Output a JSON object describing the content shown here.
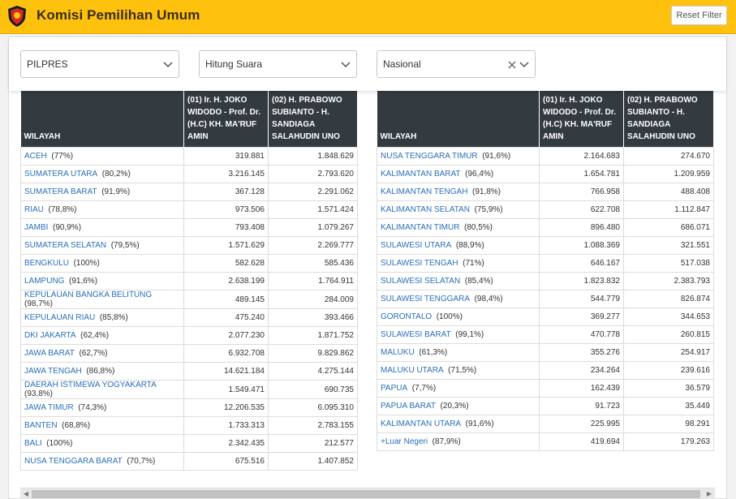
{
  "header": {
    "title": "Komisi Pemilihan Umum",
    "reset_label": "Reset Filter"
  },
  "filters": {
    "election": "PILPRES",
    "mode": "Hitung Suara",
    "area": "Nasional"
  },
  "table": {
    "col_region": "WILAYAH",
    "col_01": "(01) Ir. H. JOKO WIDODO - Prof. Dr. (H.C) KH. MA'RUF AMIN",
    "col_02": "(02) H. PRABOWO SUBIANTO - H. SANDIAGA SALAHUDIN UNO",
    "left_rows": [
      {
        "name": "ACEH",
        "pct": "(77%)",
        "v1": "319.881",
        "v2": "1.848.629"
      },
      {
        "name": "SUMATERA UTARA",
        "pct": "(80,2%)",
        "v1": "3.216.145",
        "v2": "2.793.620"
      },
      {
        "name": "SUMATERA BARAT",
        "pct": "(91,9%)",
        "v1": "367.128",
        "v2": "2.291.062"
      },
      {
        "name": "RIAU",
        "pct": "(78,8%)",
        "v1": "973.506",
        "v2": "1.571.424"
      },
      {
        "name": "JAMBI",
        "pct": "(90,9%)",
        "v1": "793.408",
        "v2": "1.079.267"
      },
      {
        "name": "SUMATERA SELATAN",
        "pct": "(79,5%)",
        "v1": "1.571.629",
        "v2": "2.269.777"
      },
      {
        "name": "BENGKULU",
        "pct": "(100%)",
        "v1": "582.628",
        "v2": "585.436"
      },
      {
        "name": "LAMPUNG",
        "pct": "(91,6%)",
        "v1": "2.638.199",
        "v2": "1.764.911"
      },
      {
        "name": "KEPULAUAN BANGKA BELITUNG",
        "pct": "(98,7%)",
        "v1": "489.145",
        "v2": "284.009"
      },
      {
        "name": "KEPULAUAN RIAU",
        "pct": "(85,8%)",
        "v1": "475.240",
        "v2": "393.466"
      },
      {
        "name": "DKI JAKARTA",
        "pct": "(62,4%)",
        "v1": "2.077.230",
        "v2": "1.871.752"
      },
      {
        "name": "JAWA BARAT",
        "pct": "(62,7%)",
        "v1": "6.932.708",
        "v2": "9.829.862"
      },
      {
        "name": "JAWA TENGAH",
        "pct": "(86,8%)",
        "v1": "14.621.184",
        "v2": "4.275.144"
      },
      {
        "name": "DAERAH ISTIMEWA YOGYAKARTA",
        "pct": "(93,8%)",
        "v1": "1.549.471",
        "v2": "690.735"
      },
      {
        "name": "JAWA TIMUR",
        "pct": "(74,3%)",
        "v1": "12.206.535",
        "v2": "6.095.310"
      },
      {
        "name": "BANTEN",
        "pct": "(68,8%)",
        "v1": "1.733.313",
        "v2": "2.783.155"
      },
      {
        "name": "BALI",
        "pct": "(100%)",
        "v1": "2.342.435",
        "v2": "212.577"
      },
      {
        "name": "NUSA TENGGARA BARAT",
        "pct": "(70,7%)",
        "v1": "675.516",
        "v2": "1.407.852"
      }
    ],
    "right_rows": [
      {
        "name": "NUSA TENGGARA TIMUR",
        "pct": "(91,6%)",
        "v1": "2.164.683",
        "v2": "274.670"
      },
      {
        "name": "KALIMANTAN BARAT",
        "pct": "(96,4%)",
        "v1": "1.654.781",
        "v2": "1.209.959"
      },
      {
        "name": "KALIMANTAN TENGAH",
        "pct": "(91,8%)",
        "v1": "766.958",
        "v2": "488.408"
      },
      {
        "name": "KALIMANTAN SELATAN",
        "pct": "(75,9%)",
        "v1": "622.708",
        "v2": "1.112.847"
      },
      {
        "name": "KALIMANTAN TIMUR",
        "pct": "(80,5%)",
        "v1": "896.480",
        "v2": "686.071"
      },
      {
        "name": "SULAWESI UTARA",
        "pct": "(88,9%)",
        "v1": "1.088.369",
        "v2": "321.551"
      },
      {
        "name": "SULAWESI TENGAH",
        "pct": "(71%)",
        "v1": "646.167",
        "v2": "517.038"
      },
      {
        "name": "SULAWESI SELATAN",
        "pct": "(85,4%)",
        "v1": "1.823.832",
        "v2": "2.383.793"
      },
      {
        "name": "SULAWESI TENGGARA",
        "pct": "(98,4%)",
        "v1": "544.779",
        "v2": "826.874"
      },
      {
        "name": "GORONTALO",
        "pct": "(100%)",
        "v1": "369.277",
        "v2": "344.653"
      },
      {
        "name": "SULAWESI BARAT",
        "pct": "(99,1%)",
        "v1": "470.778",
        "v2": "260.815"
      },
      {
        "name": "MALUKU",
        "pct": "(61,3%)",
        "v1": "355.276",
        "v2": "254.917"
      },
      {
        "name": "MALUKU UTARA",
        "pct": "(71,5%)",
        "v1": "234.264",
        "v2": "239.616"
      },
      {
        "name": "PAPUA",
        "pct": "(7,7%)",
        "v1": "162.439",
        "v2": "36.579"
      },
      {
        "name": "PAPUA BARAT",
        "pct": "(20,3%)",
        "v1": "91.723",
        "v2": "35.449"
      },
      {
        "name": "KALIMANTAN UTARA",
        "pct": "(91,6%)",
        "v1": "225.995",
        "v2": "98.291"
      },
      {
        "name": "+Luar Negeri",
        "pct": "(87,9%)",
        "v1": "419.694",
        "v2": "179.263"
      }
    ]
  },
  "icons": {
    "logo": "kpu-logo",
    "dropdown": "chevron-down-icon",
    "clear": "clear-icon"
  },
  "colors": {
    "topbar": "#fec10e",
    "table_header": "#333a40",
    "link": "#2a6fb8"
  }
}
